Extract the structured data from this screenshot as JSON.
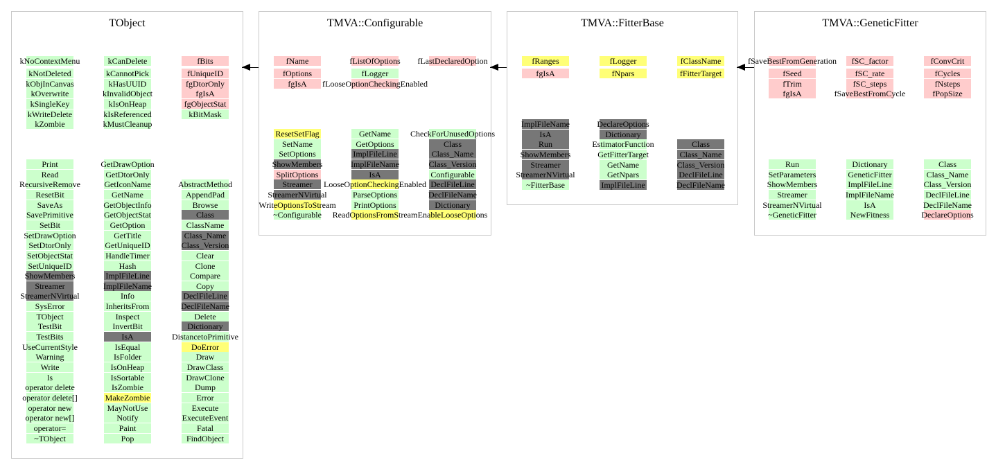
{
  "colors": {
    "g": "#ccffcc",
    "r": "#ffcccc",
    "y": "#ffff77",
    "k": "#777777"
  },
  "classes": [
    {
      "title": "TObject",
      "members": [
        [
          {
            "n": "kNoContextMenu",
            "c": "g"
          },
          {
            "n": "kNotDeleted",
            "c": "g"
          },
          {
            "n": "kObjInCanvas",
            "c": "g"
          },
          {
            "n": "kOverwrite",
            "c": "g"
          },
          {
            "n": "kSingleKey",
            "c": "g"
          },
          {
            "n": "kWriteDelete",
            "c": "g"
          },
          {
            "n": "kZombie",
            "c": "g"
          }
        ],
        [
          {
            "n": "kCanDelete",
            "c": "g"
          },
          {
            "n": "kCannotPick",
            "c": "g"
          },
          {
            "n": "kHasUUID",
            "c": "g"
          },
          {
            "n": "kInvalidObject",
            "c": "g"
          },
          {
            "n": "kIsOnHeap",
            "c": "g"
          },
          {
            "n": "kIsReferenced",
            "c": "g"
          },
          {
            "n": "kMustCleanup",
            "c": "g"
          }
        ],
        [
          {
            "n": "fBits",
            "c": "r"
          },
          {
            "n": "fUniqueID",
            "c": "r"
          },
          {
            "n": "fgDtorOnly",
            "c": "r"
          },
          {
            "n": "fgIsA",
            "c": "r"
          },
          {
            "n": "fgObjectStat",
            "c": "r"
          },
          {
            "n": "kBitMask",
            "c": "g"
          }
        ]
      ],
      "methods": [
        [
          {
            "n": "Print",
            "c": "g"
          },
          {
            "n": "Read",
            "c": "g"
          },
          {
            "n": "RecursiveRemove",
            "c": "g"
          },
          {
            "n": "ResetBit",
            "c": "g"
          },
          {
            "n": "SaveAs",
            "c": "g"
          },
          {
            "n": "SavePrimitive",
            "c": "g"
          },
          {
            "n": "SetBit",
            "c": "g"
          },
          {
            "n": "SetDrawOption",
            "c": "g"
          },
          {
            "n": "SetDtorOnly",
            "c": "g"
          },
          {
            "n": "SetObjectStat",
            "c": "g"
          },
          {
            "n": "SetUniqueID",
            "c": "g"
          },
          {
            "n": "ShowMembers",
            "c": "k"
          },
          {
            "n": "Streamer",
            "c": "k"
          },
          {
            "n": "StreamerNVirtual",
            "c": "k"
          },
          {
            "n": "SysError",
            "c": "g"
          },
          {
            "n": "TObject",
            "c": "g"
          },
          {
            "n": "TestBit",
            "c": "g"
          },
          {
            "n": "TestBits",
            "c": "g"
          },
          {
            "n": "UseCurrentStyle",
            "c": "g"
          },
          {
            "n": "Warning",
            "c": "g"
          },
          {
            "n": "Write",
            "c": "g"
          },
          {
            "n": "ls",
            "c": "g"
          },
          {
            "n": "operator delete",
            "c": "g"
          },
          {
            "n": "operator delete[]",
            "c": "g"
          },
          {
            "n": "operator new",
            "c": "g"
          },
          {
            "n": "operator new[]",
            "c": "g"
          },
          {
            "n": "operator=",
            "c": "g"
          },
          {
            "n": "~TObject",
            "c": "g"
          }
        ],
        [
          {
            "n": "GetDrawOption",
            "c": "g"
          },
          {
            "n": "GetDtorOnly",
            "c": "g"
          },
          {
            "n": "GetIconName",
            "c": "g"
          },
          {
            "n": "GetName",
            "c": "g"
          },
          {
            "n": "GetObjectInfo",
            "c": "g"
          },
          {
            "n": "GetObjectStat",
            "c": "g"
          },
          {
            "n": "GetOption",
            "c": "g"
          },
          {
            "n": "GetTitle",
            "c": "g"
          },
          {
            "n": "GetUniqueID",
            "c": "g"
          },
          {
            "n": "HandleTimer",
            "c": "g"
          },
          {
            "n": "Hash",
            "c": "g"
          },
          {
            "n": "ImplFileLine",
            "c": "k"
          },
          {
            "n": "ImplFileName",
            "c": "k"
          },
          {
            "n": "Info",
            "c": "g"
          },
          {
            "n": "InheritsFrom",
            "c": "g"
          },
          {
            "n": "Inspect",
            "c": "g"
          },
          {
            "n": "InvertBit",
            "c": "g"
          },
          {
            "n": "IsA",
            "c": "k"
          },
          {
            "n": "IsEqual",
            "c": "g"
          },
          {
            "n": "IsFolder",
            "c": "g"
          },
          {
            "n": "IsOnHeap",
            "c": "g"
          },
          {
            "n": "IsSortable",
            "c": "g"
          },
          {
            "n": "IsZombie",
            "c": "g"
          },
          {
            "n": "MakeZombie",
            "c": "y"
          },
          {
            "n": "MayNotUse",
            "c": "g"
          },
          {
            "n": "Notify",
            "c": "g"
          },
          {
            "n": "Paint",
            "c": "g"
          },
          {
            "n": "Pop",
            "c": "g"
          }
        ],
        [
          {
            "n": "AbstractMethod",
            "c": "g"
          },
          {
            "n": "AppendPad",
            "c": "g"
          },
          {
            "n": "Browse",
            "c": "g"
          },
          {
            "n": "Class",
            "c": "k"
          },
          {
            "n": "ClassName",
            "c": "g"
          },
          {
            "n": "Class_Name",
            "c": "k"
          },
          {
            "n": "Class_Version",
            "c": "k"
          },
          {
            "n": "Clear",
            "c": "g"
          },
          {
            "n": "Clone",
            "c": "g"
          },
          {
            "n": "Compare",
            "c": "g"
          },
          {
            "n": "Copy",
            "c": "g"
          },
          {
            "n": "DeclFileLine",
            "c": "k"
          },
          {
            "n": "DeclFileName",
            "c": "k"
          },
          {
            "n": "Delete",
            "c": "g"
          },
          {
            "n": "Dictionary",
            "c": "k"
          },
          {
            "n": "DistancetoPrimitive",
            "c": "g"
          },
          {
            "n": "DoError",
            "c": "y"
          },
          {
            "n": "Draw",
            "c": "g"
          },
          {
            "n": "DrawClass",
            "c": "g"
          },
          {
            "n": "DrawClone",
            "c": "g"
          },
          {
            "n": "Dump",
            "c": "g"
          },
          {
            "n": "Error",
            "c": "g"
          },
          {
            "n": "Execute",
            "c": "g"
          },
          {
            "n": "ExecuteEvent",
            "c": "g"
          },
          {
            "n": "Fatal",
            "c": "g"
          },
          {
            "n": "FindObject",
            "c": "g"
          }
        ]
      ]
    },
    {
      "title": "TMVA::Configurable",
      "members": [
        [
          {
            "n": "fName",
            "c": "r"
          },
          {
            "n": "fOptions",
            "c": "r"
          },
          {
            "n": "fgIsA",
            "c": "r"
          }
        ],
        [
          {
            "n": "fListOfOptions",
            "c": "r"
          },
          {
            "n": "fLogger",
            "c": "g"
          },
          {
            "n": "fLooseOptionCheckingEnabled",
            "c": "r"
          }
        ],
        [
          {
            "n": "fLastDeclaredOption",
            "c": "r"
          }
        ]
      ],
      "methods": [
        [
          {
            "n": "ResetSetFlag",
            "c": "y"
          },
          {
            "n": "SetName",
            "c": "g"
          },
          {
            "n": "SetOptions",
            "c": "g"
          },
          {
            "n": "ShowMembers",
            "c": "k"
          },
          {
            "n": "SplitOptions",
            "c": "r"
          },
          {
            "n": "Streamer",
            "c": "k"
          },
          {
            "n": "StreamerNVirtual",
            "c": "k"
          },
          {
            "n": "WriteOptionsToStream",
            "c": "y"
          },
          {
            "n": "~Configurable",
            "c": "g"
          }
        ],
        [
          {
            "n": "GetName",
            "c": "g"
          },
          {
            "n": "GetOptions",
            "c": "g"
          },
          {
            "n": "ImplFileLine",
            "c": "k"
          },
          {
            "n": "ImplFileName",
            "c": "k"
          },
          {
            "n": "IsA",
            "c": "k"
          },
          {
            "n": "LooseOptionCheckingEnabled",
            "c": "y"
          },
          {
            "n": "ParseOptions",
            "c": "g"
          },
          {
            "n": "PrintOptions",
            "c": "g"
          },
          {
            "n": "ReadOptionsFromStream",
            "c": "y"
          }
        ],
        [
          {
            "n": "CheckForUnusedOptions",
            "c": "g"
          },
          {
            "n": "Class",
            "c": "k"
          },
          {
            "n": "Class_Name",
            "c": "k"
          },
          {
            "n": "Class_Version",
            "c": "k"
          },
          {
            "n": "Configurable",
            "c": "g"
          },
          {
            "n": "DeclFileLine",
            "c": "k"
          },
          {
            "n": "DeclFileName",
            "c": "k"
          },
          {
            "n": "Dictionary",
            "c": "k"
          },
          {
            "n": "EnableLooseOptions",
            "c": "y"
          }
        ]
      ]
    },
    {
      "title": "TMVA::FitterBase",
      "members": [
        [
          {
            "n": "fRanges",
            "c": "y"
          },
          {
            "n": "fgIsA",
            "c": "r"
          }
        ],
        [
          {
            "n": "fLogger",
            "c": "y"
          },
          {
            "n": "fNpars",
            "c": "y"
          }
        ],
        [
          {
            "n": "fClassName",
            "c": "y"
          },
          {
            "n": "fFitterTarget",
            "c": "y"
          }
        ]
      ],
      "methods": [
        [
          {
            "n": "ImplFileName",
            "c": "k"
          },
          {
            "n": "IsA",
            "c": "k"
          },
          {
            "n": "Run",
            "c": "k"
          },
          {
            "n": "ShowMembers",
            "c": "k"
          },
          {
            "n": "Streamer",
            "c": "k"
          },
          {
            "n": "StreamerNVirtual",
            "c": "k"
          },
          {
            "n": "~FitterBase",
            "c": "g"
          }
        ],
        [
          {
            "n": "DeclareOptions",
            "c": "k"
          },
          {
            "n": "Dictionary",
            "c": "k"
          },
          {
            "n": "EstimatorFunction",
            "c": "g"
          },
          {
            "n": "GetFitterTarget",
            "c": "g"
          },
          {
            "n": "GetName",
            "c": "g"
          },
          {
            "n": "GetNpars",
            "c": "g"
          },
          {
            "n": "ImplFileLine",
            "c": "k"
          }
        ],
        [
          {
            "n": "Class",
            "c": "k"
          },
          {
            "n": "Class_Name",
            "c": "k"
          },
          {
            "n": "Class_Version",
            "c": "k"
          },
          {
            "n": "DeclFileLine",
            "c": "k"
          },
          {
            "n": "DeclFileName",
            "c": "k"
          }
        ]
      ]
    },
    {
      "title": "TMVA::GeneticFitter",
      "members": [
        [
          {
            "n": "fSaveBestFromGeneration",
            "c": "r"
          },
          {
            "n": "fSeed",
            "c": "r"
          },
          {
            "n": "fTrim",
            "c": "r"
          },
          {
            "n": "fgIsA",
            "c": "r"
          }
        ],
        [
          {
            "n": "fSC_factor",
            "c": "r"
          },
          {
            "n": "fSC_rate",
            "c": "r"
          },
          {
            "n": "fSC_steps",
            "c": "r"
          },
          {
            "n": "fSaveBestFromCycle",
            "c": "r"
          }
        ],
        [
          {
            "n": "fConvCrit",
            "c": "r"
          },
          {
            "n": "fCycles",
            "c": "r"
          },
          {
            "n": "fNsteps",
            "c": "r"
          },
          {
            "n": "fPopSize",
            "c": "r"
          }
        ]
      ],
      "methods": [
        [
          {
            "n": "Run",
            "c": "g"
          },
          {
            "n": "SetParameters",
            "c": "g"
          },
          {
            "n": "ShowMembers",
            "c": "g"
          },
          {
            "n": "Streamer",
            "c": "g"
          },
          {
            "n": "StreamerNVirtual",
            "c": "g"
          },
          {
            "n": "~GeneticFitter",
            "c": "g"
          }
        ],
        [
          {
            "n": "Dictionary",
            "c": "g"
          },
          {
            "n": "GeneticFitter",
            "c": "g"
          },
          {
            "n": "ImplFileLine",
            "c": "g"
          },
          {
            "n": "ImplFileName",
            "c": "g"
          },
          {
            "n": "IsA",
            "c": "g"
          },
          {
            "n": "NewFitness",
            "c": "g"
          }
        ],
        [
          {
            "n": "Class",
            "c": "g"
          },
          {
            "n": "Class_Name",
            "c": "g"
          },
          {
            "n": "Class_Version",
            "c": "g"
          },
          {
            "n": "DeclFileLine",
            "c": "g"
          },
          {
            "n": "DeclFileName",
            "c": "g"
          },
          {
            "n": "DeclareOptions",
            "c": "r"
          }
        ]
      ]
    }
  ]
}
